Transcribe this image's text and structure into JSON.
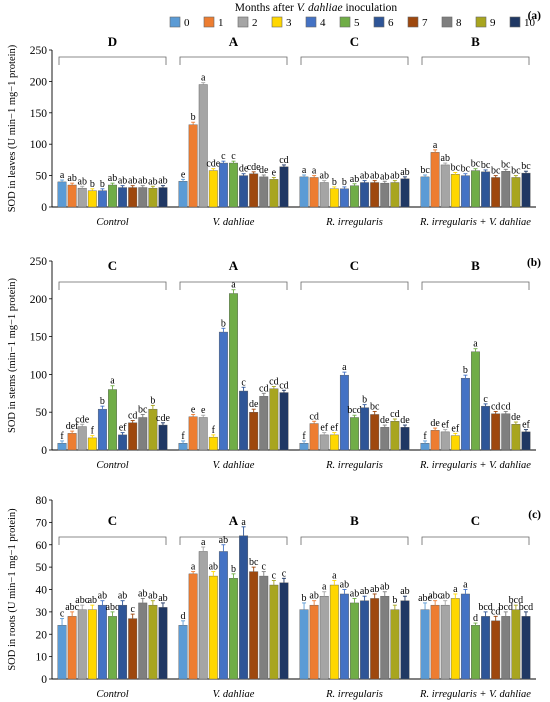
{
  "figure": {
    "legend_title_prefix": "Months after ",
    "legend_title_italic": "V. dahliae",
    "legend_title_suffix": " inoculation",
    "legend_entries": [
      "0",
      "1",
      "2",
      "3",
      "4",
      "5",
      "6",
      "7",
      "8",
      "9",
      "10"
    ],
    "series_colors": [
      "#5b9bd5",
      "#ed7d31",
      "#a5a5a5",
      "#ffd700",
      "#4472c4",
      "#70ad47",
      "#2e5597",
      "#9e480e",
      "#7f7f7f",
      "#a8a51f",
      "#203864"
    ],
    "group_labels": [
      "Control",
      "V. dahliae",
      "R. irregularis",
      "R. irregularis + V. dahliae"
    ]
  },
  "chart_data": [
    {
      "type": "bar",
      "panel_label": "(a)",
      "ylabel": "SOD in leaves (U min−1 mg−1 protein)",
      "ylim": [
        0,
        250
      ],
      "yticks": [
        0,
        50,
        100,
        150,
        200,
        250
      ],
      "categories": [
        "Control",
        "V. dahliae",
        "R. irregularis",
        "R. irregularis + V. dahliae"
      ],
      "group_letters": [
        "D",
        "A",
        "C",
        "B"
      ],
      "values": [
        [
          40,
          35,
          30,
          26,
          26,
          35,
          31,
          31,
          31,
          30,
          31
        ],
        [
          41,
          131,
          195,
          58,
          70,
          70,
          50,
          53,
          48,
          44,
          64
        ],
        [
          48,
          47,
          39,
          29,
          29,
          34,
          39,
          39,
          38,
          39,
          45
        ],
        [
          48,
          87,
          67,
          52,
          50,
          58,
          56,
          47,
          57,
          47,
          54
        ]
      ],
      "errors": [
        [
          3,
          3,
          3,
          3,
          3,
          3,
          3,
          3,
          3,
          3,
          3
        ],
        [
          3,
          4,
          3,
          3,
          3,
          3,
          3,
          3,
          3,
          3,
          3
        ],
        [
          3,
          3,
          3,
          3,
          3,
          3,
          3,
          3,
          3,
          3,
          3
        ],
        [
          3,
          4,
          3,
          3,
          3,
          3,
          3,
          3,
          3,
          3,
          3
        ]
      ],
      "labels": [
        [
          "a",
          "ab",
          "ab",
          "b",
          "b",
          "ab",
          "ab",
          "ab",
          "ab",
          "ab",
          "ab"
        ],
        [
          "e",
          "b",
          "a",
          "cde",
          "c",
          "c",
          "de",
          "cde",
          "de",
          "e",
          "cd"
        ],
        [
          "a",
          "a",
          "ab",
          "b",
          "b",
          "ab",
          "ab",
          "ab",
          "ab",
          "ab",
          "ab"
        ],
        [
          "bc",
          "a",
          "ab",
          "bc",
          "bc",
          "bc",
          "bc",
          "bc",
          "bc",
          "bc",
          "bc"
        ]
      ]
    },
    {
      "type": "bar",
      "panel_label": "(b)",
      "ylabel": "SOD in stems (min−1 mg−1 protein)",
      "ylim": [
        0,
        250
      ],
      "yticks": [
        0,
        50,
        100,
        150,
        200,
        250
      ],
      "categories": [
        "Control",
        "V. dahliae",
        "R. irregularis",
        "R. irregularis + V. dahliae"
      ],
      "group_letters": [
        "C",
        "A",
        "C",
        "B"
      ],
      "values": [
        [
          9,
          22,
          31,
          16,
          54,
          80,
          20,
          36,
          43,
          54,
          33
        ],
        [
          9,
          44,
          43,
          17,
          156,
          207,
          78,
          50,
          71,
          81,
          76
        ],
        [
          9,
          35,
          20,
          20,
          99,
          43,
          56,
          47,
          30,
          38,
          30
        ],
        [
          9,
          26,
          24,
          19,
          95,
          130,
          58,
          48,
          48,
          34,
          24
        ]
      ],
      "errors": [
        [
          3,
          3,
          3,
          3,
          4,
          5,
          3,
          3,
          4,
          5,
          3
        ],
        [
          3,
          3,
          3,
          3,
          5,
          5,
          5,
          4,
          4,
          3,
          3
        ],
        [
          3,
          3,
          3,
          3,
          4,
          3,
          4,
          4,
          3,
          3,
          3
        ],
        [
          3,
          3,
          3,
          3,
          4,
          4,
          3,
          3,
          3,
          3,
          3
        ]
      ],
      "labels": [
        [
          "f",
          "def",
          "cde",
          "f",
          "b",
          "a",
          "ef",
          "cd",
          "bc",
          "b",
          "cde"
        ],
        [
          "f",
          "e",
          "e",
          "f",
          "b",
          "a",
          "c",
          "de",
          "cd",
          "cd",
          "cd"
        ],
        [
          "f",
          "cd",
          "ef",
          "ef",
          "a",
          "bcd",
          "b",
          "bc",
          "de",
          "cd",
          "de"
        ],
        [
          "f",
          "de",
          "ef",
          "ef",
          "b",
          "a",
          "c",
          "cd",
          "cd",
          "de",
          "ef"
        ]
      ]
    },
    {
      "type": "bar",
      "panel_label": "(c)",
      "ylabel": "SOD in roots (U min−1 mg−1 protein)",
      "ylim": [
        0,
        80
      ],
      "yticks": [
        0,
        10,
        20,
        30,
        40,
        50,
        60,
        70,
        80
      ],
      "categories": [
        "Control",
        "V. dahliae",
        "R. irregularis",
        "R. irregularis + V. dahliae"
      ],
      "group_letters": [
        "C",
        "A",
        "B",
        "C"
      ],
      "values": [
        [
          24,
          28,
          31,
          31,
          33,
          28,
          33,
          27,
          34,
          33,
          32
        ],
        [
          24,
          47,
          57,
          46,
          57,
          45,
          64,
          48,
          46,
          42,
          43
        ],
        [
          31,
          33,
          37,
          42,
          38,
          34,
          35,
          36,
          37,
          31,
          35
        ],
        [
          31,
          33,
          33,
          36,
          38,
          24,
          28,
          26,
          28,
          31,
          28
        ]
      ],
      "errors": [
        [
          3,
          2,
          2,
          2,
          2,
          2,
          2,
          2,
          2,
          2,
          2
        ],
        [
          2,
          1,
          2,
          2,
          3,
          2,
          4,
          2,
          2,
          2,
          2
        ],
        [
          3,
          2,
          2,
          2,
          2,
          2,
          2,
          2,
          2,
          2,
          2
        ],
        [
          3,
          2,
          2,
          2,
          2,
          1,
          2,
          2,
          2,
          2,
          2
        ]
      ],
      "labels": [
        [
          "c",
          "abc",
          "abc",
          "ab",
          "ab",
          "abc",
          "ab",
          "c",
          "ab",
          "ab",
          "ab"
        ],
        [
          "d",
          "a",
          "a",
          "ab",
          "ab",
          "b",
          "a",
          "bc",
          "c",
          "c",
          "c"
        ],
        [
          "b",
          "ab",
          "a",
          "a",
          "ab",
          "ab",
          "ab",
          "ab",
          "ab",
          "b",
          "ab"
        ],
        [
          "abc",
          "abc",
          "ab",
          "a",
          "a",
          "d",
          "bcd",
          "cd",
          "bcd",
          "bcd",
          "bcd"
        ]
      ]
    }
  ]
}
